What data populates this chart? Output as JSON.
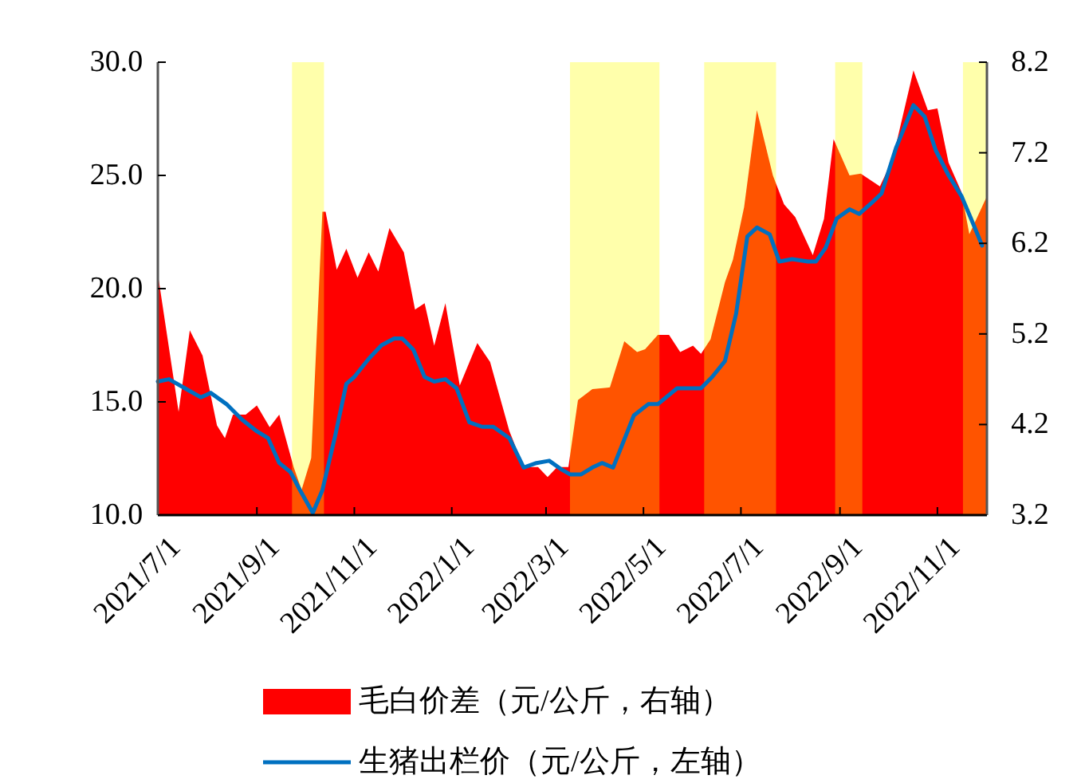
{
  "chart_data": {
    "type": "line",
    "xlim": [
      "2021-07-01",
      "2022-12-02"
    ],
    "xticks": [
      {
        "value": "2021-07-01",
        "label": "2021/7/1"
      },
      {
        "value": "2021-09-01",
        "label": "2021/9/1"
      },
      {
        "value": "2021-11-01",
        "label": "2021/11/1"
      },
      {
        "value": "2022-01-01",
        "label": "2022/1/1"
      },
      {
        "value": "2022-03-01",
        "label": "2022/3/1"
      },
      {
        "value": "2022-05-01",
        "label": "2022/5/1"
      },
      {
        "value": "2022-07-01",
        "label": "2022/7/1"
      },
      {
        "value": "2022-09-01",
        "label": "2022/9/1"
      },
      {
        "value": "2022-11-01",
        "label": "2022/11/1"
      }
    ],
    "ylim": [
      10,
      30
    ],
    "yticks": [
      {
        "value": 10,
        "label": "10.0"
      },
      {
        "value": 15,
        "label": "15.0"
      },
      {
        "value": 20,
        "label": "20.0"
      },
      {
        "value": 25,
        "label": "25.0"
      },
      {
        "value": 30,
        "label": "30.0"
      }
    ],
    "y2lim": [
      3.2,
      8.2
    ],
    "y2ticks": [
      3.2,
      4.2,
      5.2,
      6.2,
      7.2,
      8.2
    ],
    "legend": "bottom",
    "series": [
      {
        "name": "毛白价差（元/公斤，右轴）",
        "type": "area",
        "axis": "y2",
        "color": "#ff0000",
        "x": [
          "2021-07-01",
          "2021-07-14",
          "2021-07-21",
          "2021-07-29",
          "2021-08-07",
          "2021-08-12",
          "2021-08-17",
          "2021-08-25",
          "2021-09-01",
          "2021-09-09",
          "2021-09-15",
          "2021-09-24",
          "2021-09-29",
          "2021-10-05",
          "2021-10-12",
          "2021-10-14",
          "2021-10-21",
          "2021-10-27",
          "2021-11-03",
          "2021-11-10",
          "2021-11-16",
          "2021-11-23",
          "2021-12-02",
          "2021-12-09",
          "2021-12-15",
          "2021-12-21",
          "2021-12-28",
          "2022-01-06",
          "2022-01-17",
          "2022-01-25",
          "2022-02-06",
          "2022-02-15",
          "2022-02-24",
          "2022-03-02",
          "2022-03-08",
          "2022-03-15",
          "2022-03-21",
          "2022-03-30",
          "2022-04-10",
          "2022-04-19",
          "2022-04-27",
          "2022-05-02",
          "2022-05-10",
          "2022-05-17",
          "2022-05-24",
          "2022-06-01",
          "2022-06-06",
          "2022-06-12",
          "2022-06-21",
          "2022-06-26",
          "2022-07-03",
          "2022-07-11",
          "2022-07-21",
          "2022-07-28",
          "2022-08-04",
          "2022-08-15",
          "2022-08-22",
          "2022-08-28",
          "2022-09-07",
          "2022-09-14",
          "2022-09-26",
          "2022-10-04",
          "2022-10-17",
          "2022-10-26",
          "2022-11-01",
          "2022-11-08",
          "2022-11-16",
          "2022-11-21",
          "2022-12-02"
        ],
        "values": [
          5.86,
          4.34,
          5.24,
          4.96,
          4.19,
          4.05,
          4.31,
          4.31,
          4.41,
          4.17,
          4.31,
          3.73,
          3.48,
          3.83,
          6.55,
          6.55,
          5.91,
          6.14,
          5.82,
          6.1,
          5.89,
          6.37,
          6.1,
          5.47,
          5.54,
          5.07,
          5.54,
          4.63,
          5.1,
          4.89,
          4.13,
          3.73,
          3.73,
          3.62,
          3.73,
          3.73,
          4.47,
          4.59,
          4.61,
          5.12,
          5.0,
          5.03,
          5.19,
          5.19,
          5.0,
          5.07,
          4.98,
          5.14,
          5.77,
          6.02,
          6.6,
          7.67,
          6.95,
          6.63,
          6.49,
          6.07,
          6.47,
          7.35,
          6.95,
          6.97,
          6.83,
          7.13,
          8.11,
          7.67,
          7.69,
          7.09,
          6.77,
          6.3,
          6.72
        ]
      },
      {
        "name": "生猪出栏价（元/公斤，左轴）",
        "color": "#0070c0",
        "x": [
          "2021-07-01",
          "2021-07-08",
          "2021-07-18",
          "2021-07-28",
          "2021-08-03",
          "2021-08-13",
          "2021-08-23",
          "2021-09-01",
          "2021-09-08",
          "2021-09-15",
          "2021-09-22",
          "2021-09-28",
          "2021-10-06",
          "2021-10-12",
          "2021-10-20",
          "2021-10-27",
          "2021-11-01",
          "2021-11-10",
          "2021-11-18",
          "2021-11-26",
          "2021-12-01",
          "2021-12-08",
          "2021-12-15",
          "2021-12-21",
          "2021-12-28",
          "2022-01-04",
          "2022-01-12",
          "2022-01-20",
          "2022-01-27",
          "2022-02-06",
          "2022-02-15",
          "2022-02-23",
          "2022-03-03",
          "2022-03-11",
          "2022-03-16",
          "2022-03-23",
          "2022-03-30",
          "2022-04-05",
          "2022-04-12",
          "2022-04-25",
          "2022-05-04",
          "2022-05-10",
          "2022-05-22",
          "2022-06-06",
          "2022-06-13",
          "2022-06-21",
          "2022-06-28",
          "2022-07-05",
          "2022-07-11",
          "2022-07-19",
          "2022-07-25",
          "2022-08-02",
          "2022-08-12",
          "2022-08-17",
          "2022-08-23",
          "2022-08-30",
          "2022-09-07",
          "2022-09-13",
          "2022-09-21",
          "2022-09-27",
          "2022-10-06",
          "2022-10-17",
          "2022-10-24",
          "2022-10-31",
          "2022-11-08",
          "2022-11-16",
          "2022-11-22",
          "2022-11-29"
        ],
        "values": [
          15.9,
          16.0,
          15.6,
          15.2,
          15.4,
          14.9,
          14.2,
          13.7,
          13.4,
          12.3,
          11.9,
          11.1,
          10.1,
          11.1,
          13.5,
          15.8,
          16.1,
          16.9,
          17.5,
          17.8,
          17.8,
          17.3,
          16.1,
          15.9,
          16.0,
          15.6,
          14.1,
          13.9,
          13.9,
          13.4,
          12.1,
          12.3,
          12.4,
          12.0,
          11.8,
          11.8,
          12.1,
          12.3,
          12.1,
          14.4,
          14.9,
          14.9,
          15.6,
          15.6,
          16.1,
          16.8,
          18.9,
          22.3,
          22.7,
          22.4,
          21.2,
          21.3,
          21.2,
          21.2,
          21.8,
          23.1,
          23.5,
          23.3,
          23.8,
          24.2,
          26.2,
          28.1,
          27.6,
          26.1,
          25.0,
          24.1,
          23.1,
          21.9
        ]
      }
    ],
    "bands": [
      {
        "axis": "x",
        "from": "2021-09-23",
        "to": "2021-10-13",
        "color": "#ffff00"
      },
      {
        "axis": "x",
        "from": "2022-03-16",
        "to": "2022-05-11",
        "color": "#ffff00"
      },
      {
        "axis": "x",
        "from": "2022-06-08",
        "to": "2022-07-23",
        "color": "#ffff00"
      },
      {
        "axis": "x",
        "from": "2022-08-29",
        "to": "2022-09-15",
        "color": "#ffff00"
      },
      {
        "axis": "x",
        "from": "2022-11-17",
        "to": "2022-12-02",
        "color": "#ffff00"
      }
    ]
  }
}
